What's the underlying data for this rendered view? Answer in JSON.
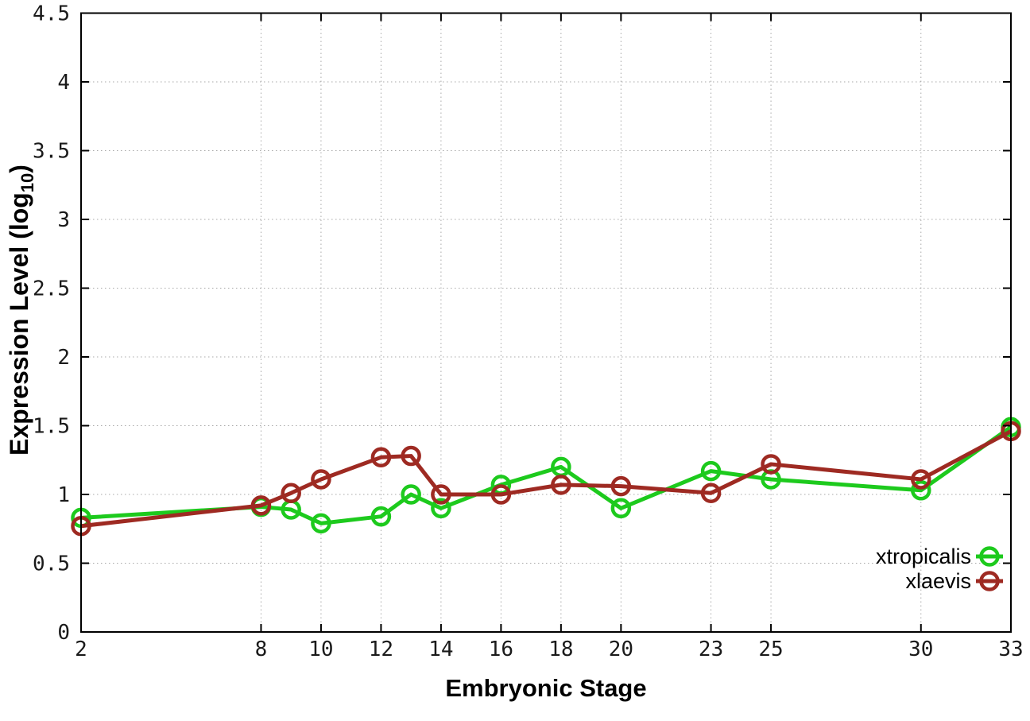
{
  "chart_data": {
    "type": "line",
    "title": "",
    "xlabel": "Embryonic Stage",
    "ylabel": "Expression Level (log10)",
    "ylabel_parts": {
      "prefix": "Expression Level (log",
      "subscript": "10",
      "suffix": ")"
    },
    "x": [
      2,
      8,
      9,
      10,
      12,
      13,
      14,
      16,
      18,
      20,
      23,
      25,
      30,
      33
    ],
    "series": [
      {
        "name": "xtropicalis",
        "color": "#1dca1d",
        "values": [
          0.83,
          0.91,
          0.89,
          0.79,
          0.84,
          1.0,
          0.9,
          1.07,
          1.2,
          0.9,
          1.17,
          1.11,
          1.03,
          1.49
        ]
      },
      {
        "name": "xlaevis",
        "color": "#9e2a22",
        "values": [
          0.77,
          0.92,
          1.01,
          1.11,
          1.27,
          1.28,
          1.0,
          1.0,
          1.07,
          1.06,
          1.01,
          1.22,
          1.11,
          1.46
        ]
      }
    ],
    "xlim": [
      2,
      33
    ],
    "ylim": [
      0,
      4.5
    ],
    "xticks": {
      "values": [
        2,
        8,
        10,
        12,
        14,
        16,
        18,
        20,
        23,
        25,
        30,
        33
      ],
      "labels": [
        "2",
        "8",
        "10",
        "12",
        "14",
        "16",
        "18",
        "20",
        "23",
        "25",
        "30",
        "33"
      ]
    },
    "yticks": {
      "values": [
        0,
        0.5,
        1,
        1.5,
        2,
        2.5,
        3,
        3.5,
        4,
        4.5
      ],
      "labels": [
        "0",
        "0.5",
        "1",
        "1.5",
        "2",
        "2.5",
        "3",
        "3.5",
        "4",
        "4.5"
      ]
    },
    "grid": "dotted",
    "grid_color": "#a8a8a8",
    "axis_color": "#000000",
    "marker": "open-circle",
    "legend": {
      "position": "inside-right",
      "entries": [
        {
          "label": "xtropicalis",
          "color": "#1dca1d"
        },
        {
          "label": "xlaevis",
          "color": "#9e2a22"
        }
      ]
    }
  }
}
